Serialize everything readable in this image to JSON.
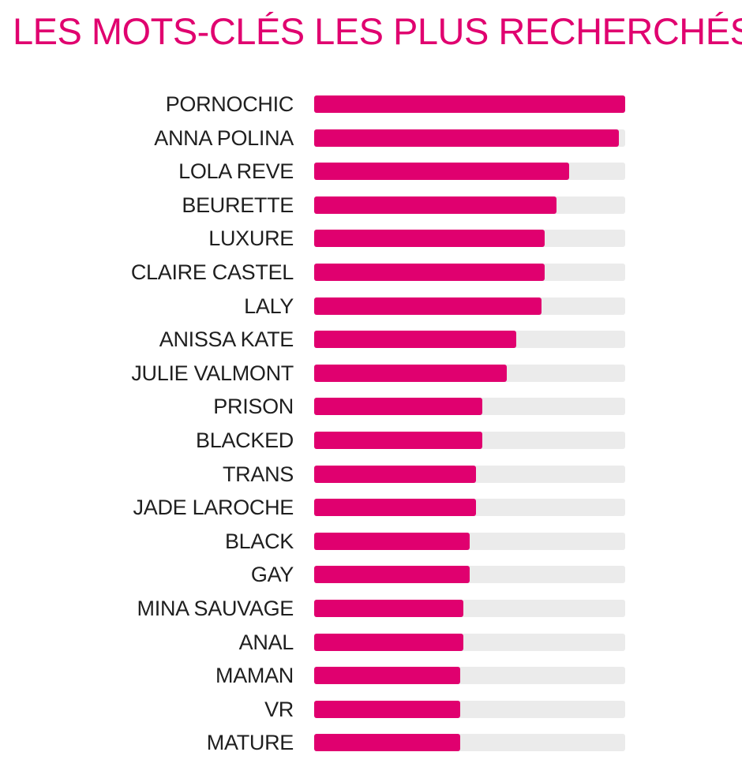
{
  "title": "LES MOTS-CLÉS LES PLUS RECHERCHÉS",
  "colors": {
    "bar": "#e0006f",
    "track": "#ebebeb",
    "label": "#1f1f1f"
  },
  "chart_data": {
    "type": "bar",
    "orientation": "horizontal",
    "title": "LES MOTS-CLÉS LES PLUS RECHERCHÉS",
    "xlim": [
      0,
      100
    ],
    "grid": false,
    "categories": [
      "PORNOCHIC",
      "ANNA POLINA",
      "LOLA REVE",
      "BEURETTE",
      "LUXURE",
      "CLAIRE CASTEL",
      "LALY",
      "ANISSA KATE",
      "JULIE VALMONT",
      "PRISON",
      "BLACKED",
      "TRANS",
      "JADE LAROCHE",
      "BLACK",
      "GAY",
      "MINA SAUVAGE",
      "ANAL",
      "MAMAN",
      "VR",
      "MATURE"
    ],
    "values": [
      100,
      98,
      82,
      78,
      74,
      74,
      73,
      65,
      62,
      54,
      54,
      52,
      52,
      50,
      50,
      48,
      48,
      47,
      47,
      47
    ]
  }
}
